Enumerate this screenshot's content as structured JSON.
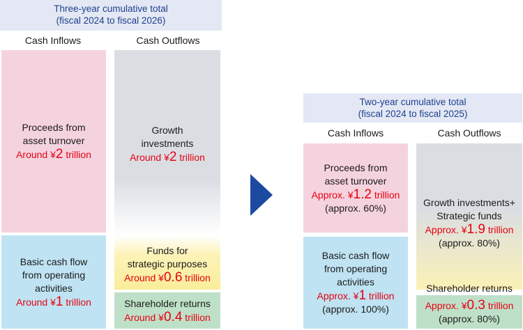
{
  "left": {
    "header_line1": "Three-year cumulative total",
    "header_line2": "(fiscal 2024 to fiscal 2026)",
    "col_inflows": "Cash Inflows",
    "col_outflows": "Cash Outflows",
    "inflow1": {
      "line1": "Proceeds from",
      "line2": "asset turnover",
      "prefix": "Around ¥",
      "num": "2",
      "suffix": " trillion"
    },
    "inflow2": {
      "line1": "Basic cash flow",
      "line2": "from operating",
      "line3": "activities",
      "prefix": "Around ¥",
      "num": "1",
      "suffix": " trillion"
    },
    "outflow1": {
      "line1": "Growth",
      "line2": "investments",
      "prefix": "Around ¥",
      "num": "2",
      "suffix": " trillion"
    },
    "outflow2": {
      "line1": "Funds for",
      "line2": "strategic purposes",
      "prefix": "Around ¥",
      "num": "0.6",
      "suffix": " trillion"
    },
    "outflow3": {
      "line1": "Shareholder returns",
      "prefix": "Around ¥",
      "num": "0.4",
      "suffix": " trillion"
    }
  },
  "right": {
    "header_line1": "Two-year cumulative total",
    "header_line2": "(fiscal 2024 to fiscal 2025)",
    "col_inflows": "Cash Inflows",
    "col_outflows": "Cash Outflows",
    "inflow1": {
      "line1": "Proceeds from",
      "line2": "asset turnover",
      "prefix": "Approx. ¥",
      "num": "1.2",
      "suffix": " trillion",
      "pct": "(approx. 60%)"
    },
    "inflow2": {
      "line1": "Basic cash flow",
      "line2": "from operating",
      "line3": "activities",
      "prefix": "Approx. ¥",
      "num": "1",
      "suffix": " trillion",
      "pct": "(approx. 100%)"
    },
    "outflow1": {
      "line1": "Growth investments+",
      "line2": "Strategic funds",
      "prefix": "Approx. ¥",
      "num": "1.9",
      "suffix": " trillion",
      "pct": "(approx. 80%)"
    },
    "outflow2": {
      "line1": "Shareholder returns",
      "prefix": "Approx. ¥",
      "num": "0.3",
      "suffix": " trillion",
      "pct": "(approx. 80%)"
    }
  },
  "colors": {
    "header_bg": "#e3e8f4",
    "header_text": "#1f3f8f",
    "pink": "#f5d3de",
    "blue": "#bfe3f2",
    "grey": "#dadee3",
    "yellow": "#f9ed9a",
    "green": "#bfe0c8",
    "red": "#e60012",
    "arrow": "#1c4aa0"
  },
  "icons": {
    "arrow": "right-triangle-arrow-icon"
  }
}
